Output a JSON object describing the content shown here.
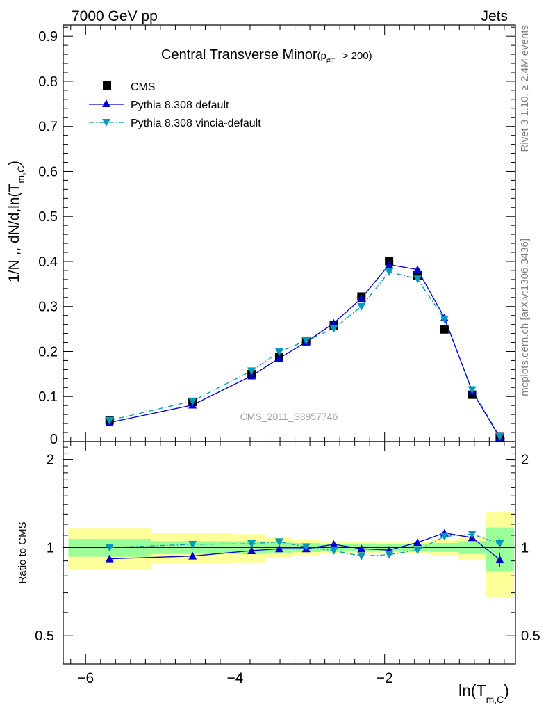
{
  "header": {
    "left": "7000 GeV pp",
    "right": "Jets"
  },
  "side_labels": {
    "rivet": "Rivet 3.1.10, ≥ 2.4M events",
    "mcplots": "mcplots.cern.ch [arXiv:1306.3436]"
  },
  "chart_data": {
    "type": "scatter",
    "title": "Central Transverse Minor",
    "title_cut_p": "p",
    "title_cut_sub": "#T",
    "title_cut_rest": "> 200)",
    "watermark": "CMS_2011_S8957746",
    "xlabel_main": "ln(T",
    "xlabel_sub": "m,C",
    "xlabel_close": ")",
    "ylabel_main": "1/N ,, dN/d,ln(T",
    "ylabel_sub": "m,C",
    "ylabel_close": ")",
    "xlim": [
      -6.3,
      -0.25
    ],
    "x_ticks": [
      -6,
      -4,
      -2
    ],
    "x_tick_labels": [
      "−6",
      "−4",
      "−2"
    ],
    "main": {
      "ylim": [
        0,
        0.925
      ],
      "y_ticks": [
        0.1,
        0.2,
        0.3,
        0.4,
        0.5,
        0.6,
        0.7,
        0.8,
        0.9
      ],
      "y_tick_labels": [
        "0.1",
        "0.2",
        "0.3",
        "0.4",
        "0.5",
        "0.6",
        "0.7",
        "0.8",
        "0.9"
      ],
      "y_zero_label": "0"
    },
    "ratio": {
      "ylabel": "Ratio to CMS",
      "log_scale": true,
      "ylim": [
        0.4,
        2.3
      ],
      "y_ticks": [
        0.5,
        1,
        2
      ],
      "y_tick_labels": [
        "0.5",
        "1",
        "2"
      ]
    },
    "x": [
      -5.68,
      -4.57,
      -3.78,
      -3.41,
      -3.05,
      -2.68,
      -2.31,
      -1.94,
      -1.56,
      -1.2,
      -0.83,
      -0.46
    ],
    "bins": [
      [
        -6.23,
        -5.13
      ],
      [
        -5.13,
        -4.02
      ],
      [
        -4.02,
        -3.59
      ],
      [
        -3.59,
        -3.23
      ],
      [
        -3.23,
        -2.86
      ],
      [
        -2.86,
        -2.49
      ],
      [
        -2.49,
        -2.12
      ],
      [
        -2.12,
        -1.75
      ],
      [
        -1.75,
        -1.38
      ],
      [
        -1.38,
        -1.01
      ],
      [
        -1.01,
        -0.64
      ],
      [
        -0.64,
        -0.27
      ]
    ],
    "series": [
      {
        "name": "CMS",
        "color": "#000000",
        "marker": "square",
        "values": [
          0.047,
          0.088,
          0.15,
          0.187,
          0.224,
          0.258,
          0.322,
          0.401,
          0.369,
          0.249,
          0.104,
          0.01
        ]
      },
      {
        "name": "Pythia 8.308 default",
        "color": "#0000cc",
        "marker": "triangle-up",
        "line": "solid",
        "values": [
          0.042,
          0.081,
          0.146,
          0.185,
          0.221,
          0.263,
          0.318,
          0.393,
          0.382,
          0.275,
          0.112,
          0.009
        ]
      },
      {
        "name": "Pythia 8.308 vincia-default",
        "color": "#0099bb",
        "marker": "triangle-down",
        "line": "dashdot",
        "values": [
          0.047,
          0.09,
          0.157,
          0.199,
          0.224,
          0.251,
          0.3,
          0.377,
          0.361,
          0.272,
          0.115,
          0.011
        ]
      }
    ],
    "ratio_series": [
      {
        "name": "Pythia 8.308 default",
        "values": [
          0.915,
          0.935,
          0.975,
          0.99,
          0.99,
          1.025,
          0.99,
          0.98,
          1.04,
          1.12,
          1.08,
          0.91
        ]
      },
      {
        "name": "Pythia 8.308 vincia-default",
        "values": [
          1.0,
          1.025,
          1.03,
          1.045,
          1.005,
          0.975,
          0.935,
          0.945,
          0.98,
          1.09,
          1.11,
          1.03
        ]
      }
    ],
    "band_green_halfwidth": [
      0.07,
      0.05,
      0.05,
      0.04,
      0.035,
      0.03,
      0.03,
      0.025,
      0.03,
      0.035,
      0.05,
      0.17
    ],
    "band_yellow_halfwidth": [
      0.16,
      0.12,
      0.11,
      0.08,
      0.06,
      0.05,
      0.045,
      0.04,
      0.045,
      0.06,
      0.09,
      0.32
    ],
    "colors": {
      "band_green": "#99ff99",
      "band_yellow": "#ffff99"
    }
  }
}
